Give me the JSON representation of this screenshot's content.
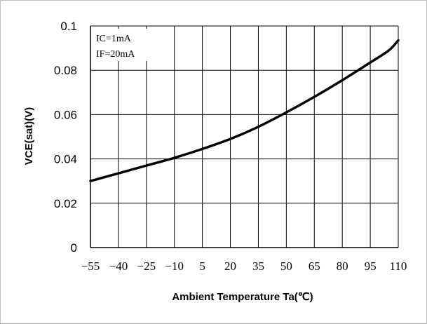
{
  "chart_data": {
    "type": "line",
    "title": "",
    "xlabel": "Ambient Temperature Ta(℃)",
    "ylabel": "VCE(sat)(V)",
    "ylim": [
      0,
      0.1
    ],
    "xlim": [
      -55,
      110
    ],
    "grid": true,
    "xticks": [
      "−55",
      "−40",
      "−25",
      "−10",
      "5",
      "20",
      "35",
      "50",
      "65",
      "80",
      "95",
      "110"
    ],
    "xtick_values": [
      -55,
      -40,
      -25,
      -10,
      5,
      20,
      35,
      50,
      65,
      80,
      95,
      110
    ],
    "yticks": [
      "0",
      "0.02",
      "0.04",
      "0.06",
      "0.08",
      "0.1"
    ],
    "ytick_values": [
      0,
      0.02,
      0.04,
      0.06,
      0.08,
      0.1
    ],
    "conditions": [
      "IC=1mA",
      "IF=20mA"
    ],
    "series": [
      {
        "x": [
          -55,
          -40,
          -25,
          -10,
          5,
          20,
          35,
          50,
          65,
          80,
          95,
          105,
          110
        ],
        "y": [
          0.03,
          0.0335,
          0.037,
          0.0405,
          0.0445,
          0.049,
          0.0545,
          0.061,
          0.068,
          0.0755,
          0.0835,
          0.089,
          0.0935
        ],
        "color": "#000000"
      }
    ]
  }
}
